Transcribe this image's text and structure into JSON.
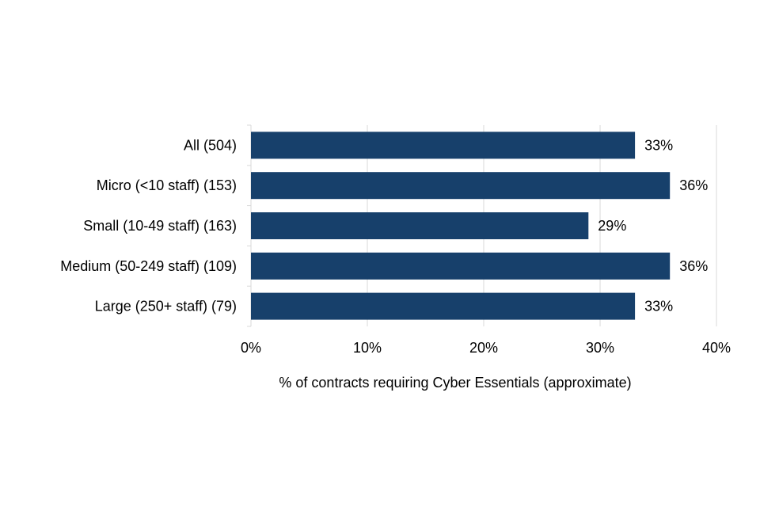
{
  "chart_data": {
    "type": "bar",
    "orientation": "horizontal",
    "categories": [
      "All (504)",
      "Micro (<10 staff) (153)",
      "Small (10-49 staff) (163)",
      "Medium (50-249 staff) (109)",
      "Large (250+ staff) (79)"
    ],
    "values": [
      33,
      36,
      29,
      36,
      33
    ],
    "data_labels": [
      "33%",
      "36%",
      "29%",
      "36%",
      "33%"
    ],
    "xlabel": "% of contracts requiring Cyber Essentials (approximate)",
    "ylabel": "",
    "xlim": [
      0,
      40
    ],
    "x_ticks": [
      0,
      10,
      20,
      30,
      40
    ],
    "x_tick_labels": [
      "0%",
      "10%",
      "20%",
      "30%",
      "40%"
    ],
    "grid": "vertical",
    "legend": "none",
    "bar_color": "#17406b",
    "grid_color": "#d9d9d9"
  }
}
